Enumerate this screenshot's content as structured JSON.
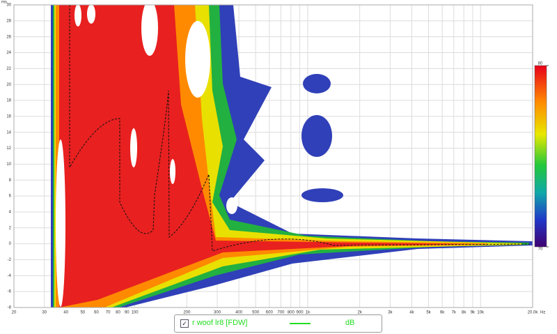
{
  "chart_data": {
    "type": "spectrogram",
    "x_unit": "Hz",
    "y_unit": "ms",
    "xlog": true,
    "grid": true,
    "xlim": [
      20,
      20000
    ],
    "ylim": [
      -8,
      30
    ],
    "xticks": [
      20,
      30,
      40,
      50,
      60,
      70,
      80,
      90,
      100,
      200,
      300,
      400,
      500,
      600,
      700,
      800,
      900,
      {
        "value": 1000,
        "label": "1k"
      },
      {
        "value": 2000,
        "label": "2k"
      },
      {
        "value": 3000,
        "label": "3k"
      },
      {
        "value": 4000,
        "label": "4k"
      },
      {
        "value": 5000,
        "label": "5k"
      },
      {
        "value": 6000,
        "label": "6k"
      },
      {
        "value": 7000,
        "label": "7k"
      },
      {
        "value": 8000,
        "label": "8k"
      },
      {
        "value": 9000,
        "label": "9k"
      },
      {
        "value": 10000,
        "label": "10k"
      },
      {
        "value": 20000,
        "label": "20.0k"
      }
    ],
    "yticks": [
      -8,
      -6,
      -4,
      -2,
      0,
      2,
      4,
      6,
      8,
      10,
      12,
      14,
      16,
      18,
      20,
      22,
      24,
      26,
      28,
      30
    ],
    "colorbar": {
      "lim": [
        70,
        80
      ],
      "ticks": [
        70,
        80
      ]
    },
    "legend": {
      "label": "r woof lr8 [FDW]",
      "color": "#22dd22",
      "unit": "dB"
    }
  }
}
